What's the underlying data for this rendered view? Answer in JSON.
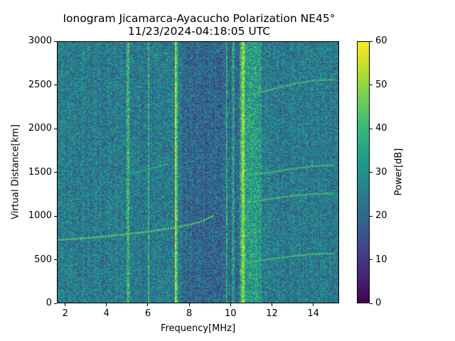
{
  "chart_data": {
    "type": "heatmap",
    "title": "Ionogram Jicamarca-Ayacucho Polarization NE45°",
    "subtitle": "11/23/2024-04:18:05 UTC",
    "xlabel": "Frequency[MHz]",
    "ylabel": "Virtual Distance[km]",
    "xlim": [
      1.6,
      15.25
    ],
    "ylim": [
      0,
      3000
    ],
    "xticks": [
      2,
      4,
      6,
      8,
      10,
      12,
      14
    ],
    "yticks": [
      0,
      500,
      1000,
      1500,
      2000,
      2500,
      3000
    ],
    "colorbar": {
      "label": "Power[dB]",
      "range": [
        0,
        60
      ],
      "ticks": [
        0,
        10,
        20,
        30,
        40,
        50,
        60
      ],
      "colormap": "viridis"
    },
    "background_level_db": 25,
    "vertical_interference_mhz": [
      5.0,
      6.0,
      7.3,
      7.35,
      9.8,
      10.1,
      10.5,
      10.6
    ],
    "bright_band_mhz": [
      10.5,
      11.5
    ],
    "echo_traces": [
      {
        "name": "F-layer 1st hop",
        "x": [
          1.6,
          3,
          4.5,
          6,
          7,
          8,
          8.5,
          9,
          9.2
        ],
        "y": [
          725,
          745,
          780,
          820,
          855,
          900,
          930,
          980,
          1010
        ],
        "power_db": 45
      },
      {
        "name": "F-layer 2nd hop",
        "x": [
          5,
          6,
          7
        ],
        "y": [
          1480,
          1530,
          1600
        ],
        "power_db": 38
      },
      {
        "name": "Trace 10-15 MHz A",
        "x": [
          10.8,
          12,
          13,
          14,
          15
        ],
        "y": [
          470,
          510,
          540,
          565,
          570
        ],
        "power_db": 42
      },
      {
        "name": "Trace 10-15 MHz B",
        "x": [
          10.8,
          12,
          13,
          14,
          15
        ],
        "y": [
          1150,
          1200,
          1230,
          1250,
          1260
        ],
        "power_db": 42
      },
      {
        "name": "Trace 10-15 MHz C",
        "x": [
          10.8,
          12,
          13,
          14,
          15
        ],
        "y": [
          1470,
          1500,
          1540,
          1570,
          1580
        ],
        "power_db": 42
      },
      {
        "name": "Trace 10-15 MHz D",
        "x": [
          10.8,
          12,
          13,
          14,
          15
        ],
        "y": [
          2380,
          2450,
          2510,
          2550,
          2560
        ],
        "power_db": 42
      }
    ]
  }
}
